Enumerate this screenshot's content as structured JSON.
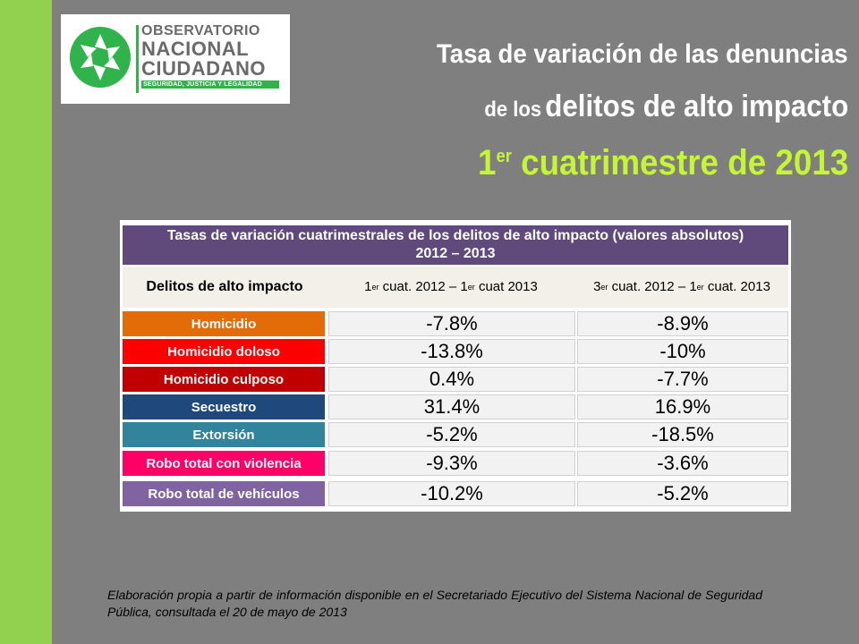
{
  "logo": {
    "line1": "OBSERVATORIO",
    "line2": "NACIONAL",
    "line3": "CIUDADANO",
    "tagline": "SEGURIDAD, JUSTICIA Y LEGALIDAD"
  },
  "title": {
    "line1": "Tasa de variación de las denuncias",
    "line2_small": "de los",
    "line2_big": "delitos de alto impacto",
    "line3_num": "1",
    "line3_sup": "er",
    "line3_rest": " cuatrimestre de 2013"
  },
  "table": {
    "header_line1": "Tasas de variación cuatrimestrales de los delitos de alto impacto (valores absolutos)",
    "header_line2": "2012 – 2013",
    "col0": "Delitos de alto impacto",
    "col1_a": "1",
    "col1_sup": "er",
    "col1_b": " cuat. 2012 – 1",
    "col1_sup2": "er",
    "col1_c": " cuat 2013",
    "col2_a": "3",
    "col2_sup": "er",
    "col2_b": " cuat. 2012 – 1",
    "col2_sup2": "er",
    "col2_c": " cuat. 2013",
    "rows": [
      {
        "label": "Homicidio",
        "color": "#e36c09",
        "v1": "-7.8%",
        "v2": "-8.9%"
      },
      {
        "label": "Homicidio doloso",
        "color": "#ff0000",
        "v1": "-13.8%",
        "v2": "-10%"
      },
      {
        "label": "Homicidio culposo",
        "color": "#c00000",
        "v1": "0.4%",
        "v2": "-7.7%"
      },
      {
        "label": "Secuestro",
        "color": "#1f497d",
        "v1": "31.4%",
        "v2": "16.9%"
      },
      {
        "label": "Extorsión",
        "color": "#31849b",
        "v1": "-5.2%",
        "v2": "-18.5%"
      },
      {
        "label": "Robo total con violencia",
        "color": "#ff0066",
        "v1": "-9.3%",
        "v2": "-3.6%"
      },
      {
        "label": "Robo total de vehículos",
        "color": "#8064a2",
        "v1": "-10.2%",
        "v2": "-5.2%"
      }
    ]
  },
  "footnote": "Elaboración propia a partir de información disponible en el Secretariado Ejecutivo del Sistema Nacional de Seguridad Pública, consultada el 20 de mayo de 2013",
  "colors": {
    "background": "#7f7f7f",
    "side_bar": "#92d050",
    "accent_title": "#c6f531",
    "table_header": "#604a7b"
  }
}
